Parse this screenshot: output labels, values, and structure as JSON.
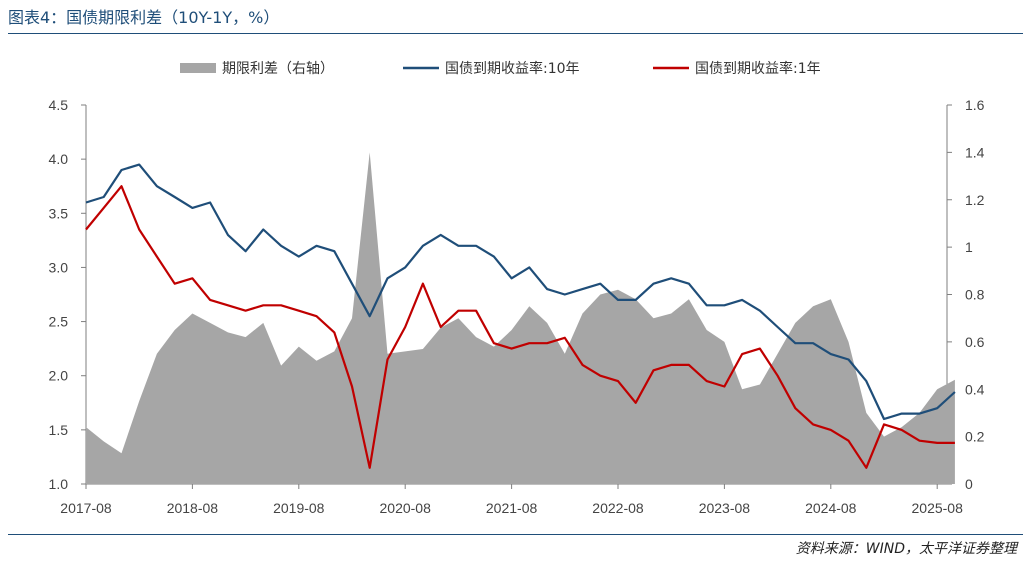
{
  "title": "图表4：国债期限利差（10Y-1Y，%）",
  "source": "资料来源：WIND，太平洋证券整理",
  "colors": {
    "spread": "#a6a6a6",
    "y10": "#1f4e79",
    "y1": "#c00000",
    "accent": "#1f4e79"
  },
  "chart_data": {
    "type": "line",
    "title": "图表4：国债期限利差（10Y-1Y，%）",
    "legend": [
      "期限利差（右轴）",
      "国债到期收益率:10年",
      "国债到期收益率:1年"
    ],
    "legend_position": "top",
    "x_tick_labels": [
      "2017-08",
      "2018-08",
      "2019-08",
      "2020-08",
      "2021-08",
      "2022-08",
      "2023-08",
      "2024-08",
      "2025-08"
    ],
    "x": [
      "2017-08",
      "2017-10",
      "2017-12",
      "2018-02",
      "2018-04",
      "2018-06",
      "2018-08",
      "2018-10",
      "2018-12",
      "2019-02",
      "2019-04",
      "2019-06",
      "2019-08",
      "2019-10",
      "2019-12",
      "2020-02",
      "2020-04",
      "2020-06",
      "2020-08",
      "2020-10",
      "2020-12",
      "2021-02",
      "2021-04",
      "2021-06",
      "2021-08",
      "2021-10",
      "2021-12",
      "2022-02",
      "2022-04",
      "2022-06",
      "2022-08",
      "2022-10",
      "2022-12",
      "2023-02",
      "2023-04",
      "2023-06",
      "2023-08",
      "2023-10",
      "2023-12",
      "2024-02",
      "2024-04",
      "2024-06",
      "2024-08",
      "2024-10",
      "2024-12",
      "2025-02",
      "2025-04",
      "2025-06",
      "2025-08",
      "2025-10"
    ],
    "ylim_left": [
      1.0,
      4.5
    ],
    "yticks_left": [
      "1.0",
      "1.5",
      "2.0",
      "2.5",
      "3.0",
      "3.5",
      "4.0",
      "4.5"
    ],
    "ylim_right": [
      0,
      1.6
    ],
    "yticks_right": [
      "0",
      "0.2",
      "0.4",
      "0.6",
      "0.8",
      "1",
      "1.2",
      "1.4",
      "1.6"
    ],
    "series": [
      {
        "name": "期限利差（右轴）",
        "type": "area",
        "axis": "right",
        "values": [
          0.24,
          0.18,
          0.13,
          0.35,
          0.55,
          0.65,
          0.72,
          0.68,
          0.64,
          0.62,
          0.68,
          0.5,
          0.58,
          0.52,
          0.56,
          0.7,
          1.4,
          0.55,
          0.56,
          0.57,
          0.66,
          0.7,
          0.62,
          0.58,
          0.65,
          0.75,
          0.68,
          0.55,
          0.72,
          0.8,
          0.82,
          0.78,
          0.7,
          0.72,
          0.78,
          0.65,
          0.6,
          0.4,
          0.42,
          0.55,
          0.68,
          0.75,
          0.78,
          0.6,
          0.3,
          0.2,
          0.24,
          0.3,
          0.4,
          0.44
        ]
      },
      {
        "name": "国债到期收益率:10年",
        "type": "line",
        "axis": "left",
        "values": [
          3.6,
          3.65,
          3.9,
          3.95,
          3.75,
          3.65,
          3.55,
          3.6,
          3.3,
          3.15,
          3.35,
          3.2,
          3.1,
          3.2,
          3.15,
          2.85,
          2.55,
          2.9,
          3.0,
          3.2,
          3.3,
          3.2,
          3.2,
          3.1,
          2.9,
          3.0,
          2.8,
          2.75,
          2.8,
          2.85,
          2.7,
          2.7,
          2.85,
          2.9,
          2.85,
          2.65,
          2.65,
          2.7,
          2.6,
          2.45,
          2.3,
          2.3,
          2.2,
          2.15,
          1.95,
          1.6,
          1.65,
          1.65,
          1.7,
          1.85
        ]
      },
      {
        "name": "国债到期收益率:1年",
        "type": "line",
        "axis": "left",
        "values": [
          3.35,
          3.55,
          3.75,
          3.35,
          3.1,
          2.85,
          2.9,
          2.7,
          2.65,
          2.6,
          2.65,
          2.65,
          2.6,
          2.55,
          2.4,
          1.9,
          1.15,
          2.15,
          2.45,
          2.85,
          2.45,
          2.6,
          2.6,
          2.3,
          2.25,
          2.3,
          2.3,
          2.35,
          2.1,
          2.0,
          1.95,
          1.75,
          2.05,
          2.1,
          2.1,
          1.95,
          1.9,
          2.2,
          2.25,
          2.0,
          1.7,
          1.55,
          1.5,
          1.4,
          1.15,
          1.55,
          1.5,
          1.4,
          1.38,
          1.38
        ]
      }
    ]
  }
}
